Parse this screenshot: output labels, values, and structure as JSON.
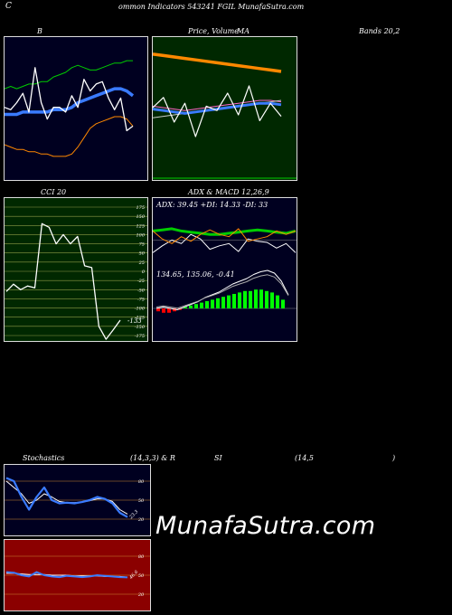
{
  "header": {
    "left_letter": "C",
    "title": "ommon Indicators 543241 FGIL MunafaSutra.com"
  },
  "labels": {
    "bb": "B",
    "price_volume": "Price, Volume",
    "ma": "MA",
    "bands": "Bands 20,2",
    "cci": "CCI 20",
    "adx_macd": "ADX & MACD 12,26,9",
    "adx_values": "ADX: 39.45 +DI: 14.33 -DI: 33",
    "macd_values": "134.65, 135.06, -0.41",
    "cci_value": "-133",
    "stochastics": "Stochastics",
    "stoch_params": "(14,3,3) & R",
    "si": "SI",
    "rsi_params": "(14,5",
    "rsi_close": ")",
    "stoch_value": "23.3",
    "rsi_value": "46.6"
  },
  "watermark": "MunafaSutra.com",
  "colors": {
    "bb_bg": "#000020",
    "price_bg": "#002800",
    "cci_bg": "#002800",
    "macd_bg": "#000020",
    "stoch_bg": "#000020",
    "rsi_bg": "#8b0000",
    "green_line": "#00cc00",
    "blue_line": "#3a7bff",
    "orange_line": "#ff8800",
    "white_line": "#ffffff"
  },
  "chart_data": [
    {
      "type": "line",
      "name": "bollinger",
      "series": [
        {
          "values": [
            96,
            97,
            96,
            97,
            98,
            98,
            99,
            99,
            101,
            102,
            103,
            105,
            106,
            105,
            104,
            104,
            105,
            106,
            107,
            107,
            108,
            108
          ]
        },
        {
          "values": [
            88,
            87,
            90,
            94,
            86,
            105,
            90,
            83,
            88,
            88,
            86,
            93,
            88,
            100,
            95,
            98,
            99,
            92,
            87,
            92,
            78,
            80
          ]
        },
        {
          "values": [
            85,
            85,
            85,
            86,
            86,
            86,
            86,
            86,
            87,
            87,
            87,
            88,
            90,
            91,
            92,
            93,
            94,
            95,
            96,
            96,
            95,
            93
          ]
        },
        {
          "values": [
            72,
            71,
            70,
            70,
            69,
            69,
            68,
            68,
            67,
            67,
            67,
            68,
            71,
            75,
            79,
            81,
            82,
            83,
            84,
            84,
            83,
            80
          ]
        }
      ]
    },
    {
      "type": "line",
      "name": "price_ma",
      "series": [
        {
          "values": [
            142,
            141,
            140,
            139,
            138,
            137,
            136,
            135,
            134,
            133,
            132,
            131,
            130
          ]
        },
        {
          "values": [
            106,
            105,
            104,
            103,
            104,
            105,
            106,
            107,
            108,
            109,
            110,
            110,
            109
          ]
        },
        {
          "values": [
            105,
            112,
            95,
            108,
            85,
            106,
            103,
            115,
            100,
            120,
            96,
            108,
            99
          ]
        },
        {
          "values": [
            98,
            99,
            100,
            101,
            102,
            103,
            104,
            105,
            106,
            107,
            108,
            109,
            110
          ]
        }
      ]
    },
    {
      "type": "line",
      "name": "cci",
      "y_ticks": [
        175,
        150,
        125,
        100,
        75,
        50,
        25,
        0,
        -25,
        -50,
        -75,
        -100,
        -125,
        -150,
        -175
      ],
      "ylim": [
        -175,
        175
      ],
      "values": [
        -55,
        -35,
        -50,
        -40,
        -45,
        130,
        120,
        75,
        100,
        75,
        95,
        15,
        10,
        -150,
        -185,
        -160,
        -133
      ]
    },
    {
      "type": "line",
      "name": "adx_macd",
      "series": [
        {
          "values": [
            33,
            34,
            35,
            33,
            32,
            31,
            30,
            30,
            31,
            32,
            33,
            34,
            33,
            32,
            31,
            33
          ]
        },
        {
          "values": [
            14,
            20,
            25,
            22,
            30,
            26,
            17,
            20,
            22,
            15,
            26,
            24,
            23,
            18,
            22,
            14
          ]
        },
        {
          "values": [
            33,
            26,
            22,
            28,
            24,
            30,
            34,
            30,
            28,
            35,
            24,
            26,
            28,
            33,
            30,
            33
          ]
        },
        {
          "values": [
            39,
            38,
            37,
            36,
            37,
            38,
            39,
            40,
            39,
            38,
            39,
            40,
            41,
            40,
            39,
            39
          ]
        }
      ]
    },
    {
      "type": "line",
      "name": "stochastics",
      "y_ticks": [
        80,
        50,
        20
      ],
      "ylim": [
        0,
        100
      ],
      "series": [
        {
          "values": [
            85,
            80,
            55,
            35,
            55,
            70,
            50,
            45,
            46,
            45,
            47,
            50,
            55,
            52,
            45,
            30,
            23.3
          ]
        },
        {
          "values": [
            80,
            70,
            60,
            45,
            50,
            60,
            55,
            48,
            46,
            46,
            47,
            49,
            52,
            52,
            48,
            35,
            28
          ]
        }
      ]
    },
    {
      "type": "line",
      "name": "rsi",
      "y_ticks": [
        80,
        50,
        20
      ],
      "ylim": [
        0,
        100
      ],
      "series": [
        {
          "values": [
            55,
            54,
            50,
            48,
            55,
            50,
            48,
            47,
            49,
            48,
            47,
            48,
            50,
            49,
            48,
            47,
            46.6
          ]
        },
        {
          "values": [
            53,
            53,
            52,
            51,
            51,
            51,
            50,
            50,
            50,
            49,
            49,
            49,
            49,
            48,
            48,
            48,
            47
          ]
        }
      ]
    }
  ]
}
